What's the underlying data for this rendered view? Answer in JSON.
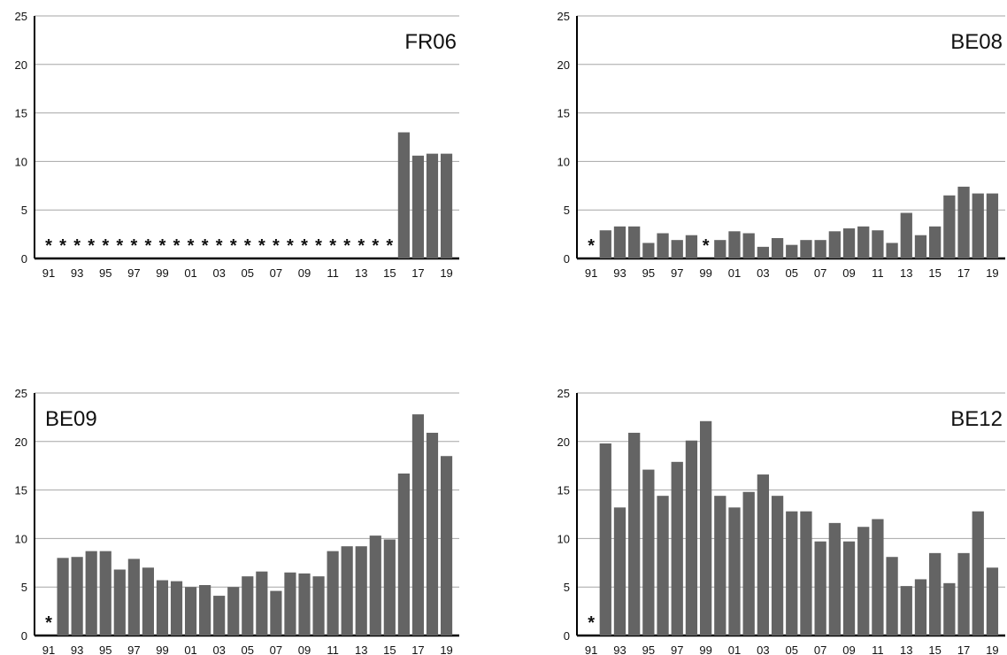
{
  "bar_color": "#646464",
  "grid_color": "#a6a6a6",
  "axis_color": "#000000",
  "missing_marker": "*",
  "chart_data": [
    {
      "type": "bar",
      "title": "FR06",
      "title_position": "top-right",
      "years": [
        "91",
        "92",
        "93",
        "94",
        "95",
        "96",
        "97",
        "98",
        "99",
        "00",
        "01",
        "02",
        "03",
        "04",
        "05",
        "06",
        "07",
        "08",
        "09",
        "10",
        "11",
        "12",
        "13",
        "14",
        "15",
        "16",
        "17",
        "18",
        "19"
      ],
      "x_tick_labels": [
        "91",
        "93",
        "95",
        "97",
        "99",
        "01",
        "03",
        "05",
        "07",
        "09",
        "11",
        "13",
        "15",
        "17",
        "19"
      ],
      "values": [
        null,
        null,
        null,
        null,
        null,
        null,
        null,
        null,
        null,
        null,
        null,
        null,
        null,
        null,
        null,
        null,
        null,
        null,
        null,
        null,
        null,
        null,
        null,
        null,
        null,
        13.0,
        10.6,
        10.8,
        10.8
      ],
      "y_ticks": [
        "0",
        "5",
        "10",
        "15",
        "20",
        "25"
      ],
      "ylim": [
        0,
        25
      ],
      "grid": true
    },
    {
      "type": "bar",
      "title": "BE08",
      "title_position": "top-right",
      "years": [
        "91",
        "92",
        "93",
        "94",
        "95",
        "96",
        "97",
        "98",
        "99",
        "00",
        "01",
        "02",
        "03",
        "04",
        "05",
        "06",
        "07",
        "08",
        "09",
        "10",
        "11",
        "12",
        "13",
        "14",
        "15",
        "16",
        "17",
        "18",
        "19"
      ],
      "x_tick_labels": [
        "91",
        "93",
        "95",
        "97",
        "99",
        "01",
        "03",
        "05",
        "07",
        "09",
        "11",
        "13",
        "15",
        "17",
        "19"
      ],
      "values": [
        null,
        2.9,
        3.3,
        3.3,
        1.6,
        2.6,
        1.9,
        2.4,
        null,
        1.9,
        2.8,
        2.6,
        1.2,
        2.1,
        1.4,
        1.9,
        1.9,
        2.8,
        3.1,
        3.3,
        2.9,
        1.6,
        4.7,
        2.4,
        3.3,
        6.5,
        7.4,
        6.7,
        6.7
      ],
      "y_ticks": [
        "0",
        "5",
        "10",
        "15",
        "20",
        "25"
      ],
      "ylim": [
        0,
        25
      ],
      "grid": true
    },
    {
      "type": "bar",
      "title": "BE09",
      "title_position": "top-left",
      "years": [
        "91",
        "92",
        "93",
        "94",
        "95",
        "96",
        "97",
        "98",
        "99",
        "00",
        "01",
        "02",
        "03",
        "04",
        "05",
        "06",
        "07",
        "08",
        "09",
        "10",
        "11",
        "12",
        "13",
        "14",
        "15",
        "16",
        "17",
        "18",
        "19"
      ],
      "x_tick_labels": [
        "91",
        "93",
        "95",
        "97",
        "99",
        "01",
        "03",
        "05",
        "07",
        "09",
        "11",
        "13",
        "15",
        "17",
        "19"
      ],
      "values": [
        null,
        8.0,
        8.1,
        8.7,
        8.7,
        6.8,
        7.9,
        7.0,
        5.7,
        5.6,
        5.0,
        5.2,
        4.1,
        5.0,
        6.1,
        6.6,
        4.6,
        6.5,
        6.4,
        6.1,
        8.7,
        9.2,
        9.2,
        10.3,
        9.9,
        16.7,
        22.8,
        20.9,
        18.5
      ],
      "y_ticks": [
        "0",
        "5",
        "10",
        "15",
        "20",
        "25"
      ],
      "ylim": [
        0,
        25
      ],
      "grid": true
    },
    {
      "type": "bar",
      "title": "BE12",
      "title_position": "top-right",
      "years": [
        "91",
        "92",
        "93",
        "94",
        "95",
        "96",
        "97",
        "98",
        "99",
        "00",
        "01",
        "02",
        "03",
        "04",
        "05",
        "06",
        "07",
        "08",
        "09",
        "10",
        "11",
        "12",
        "13",
        "14",
        "15",
        "16",
        "17",
        "18",
        "19"
      ],
      "x_tick_labels": [
        "91",
        "93",
        "95",
        "97",
        "99",
        "01",
        "03",
        "05",
        "07",
        "09",
        "11",
        "13",
        "15",
        "17",
        "19"
      ],
      "values": [
        null,
        19.8,
        13.2,
        20.9,
        17.1,
        14.4,
        17.9,
        20.1,
        22.1,
        14.4,
        13.2,
        14.8,
        16.6,
        14.4,
        12.8,
        12.8,
        9.7,
        11.6,
        9.7,
        11.2,
        12.0,
        8.1,
        5.1,
        5.8,
        8.5,
        5.4,
        8.5,
        12.8,
        7.0
      ],
      "y_ticks": [
        "0",
        "5",
        "10",
        "15",
        "20",
        "25"
      ],
      "ylim": [
        0,
        25
      ],
      "grid": true
    }
  ]
}
